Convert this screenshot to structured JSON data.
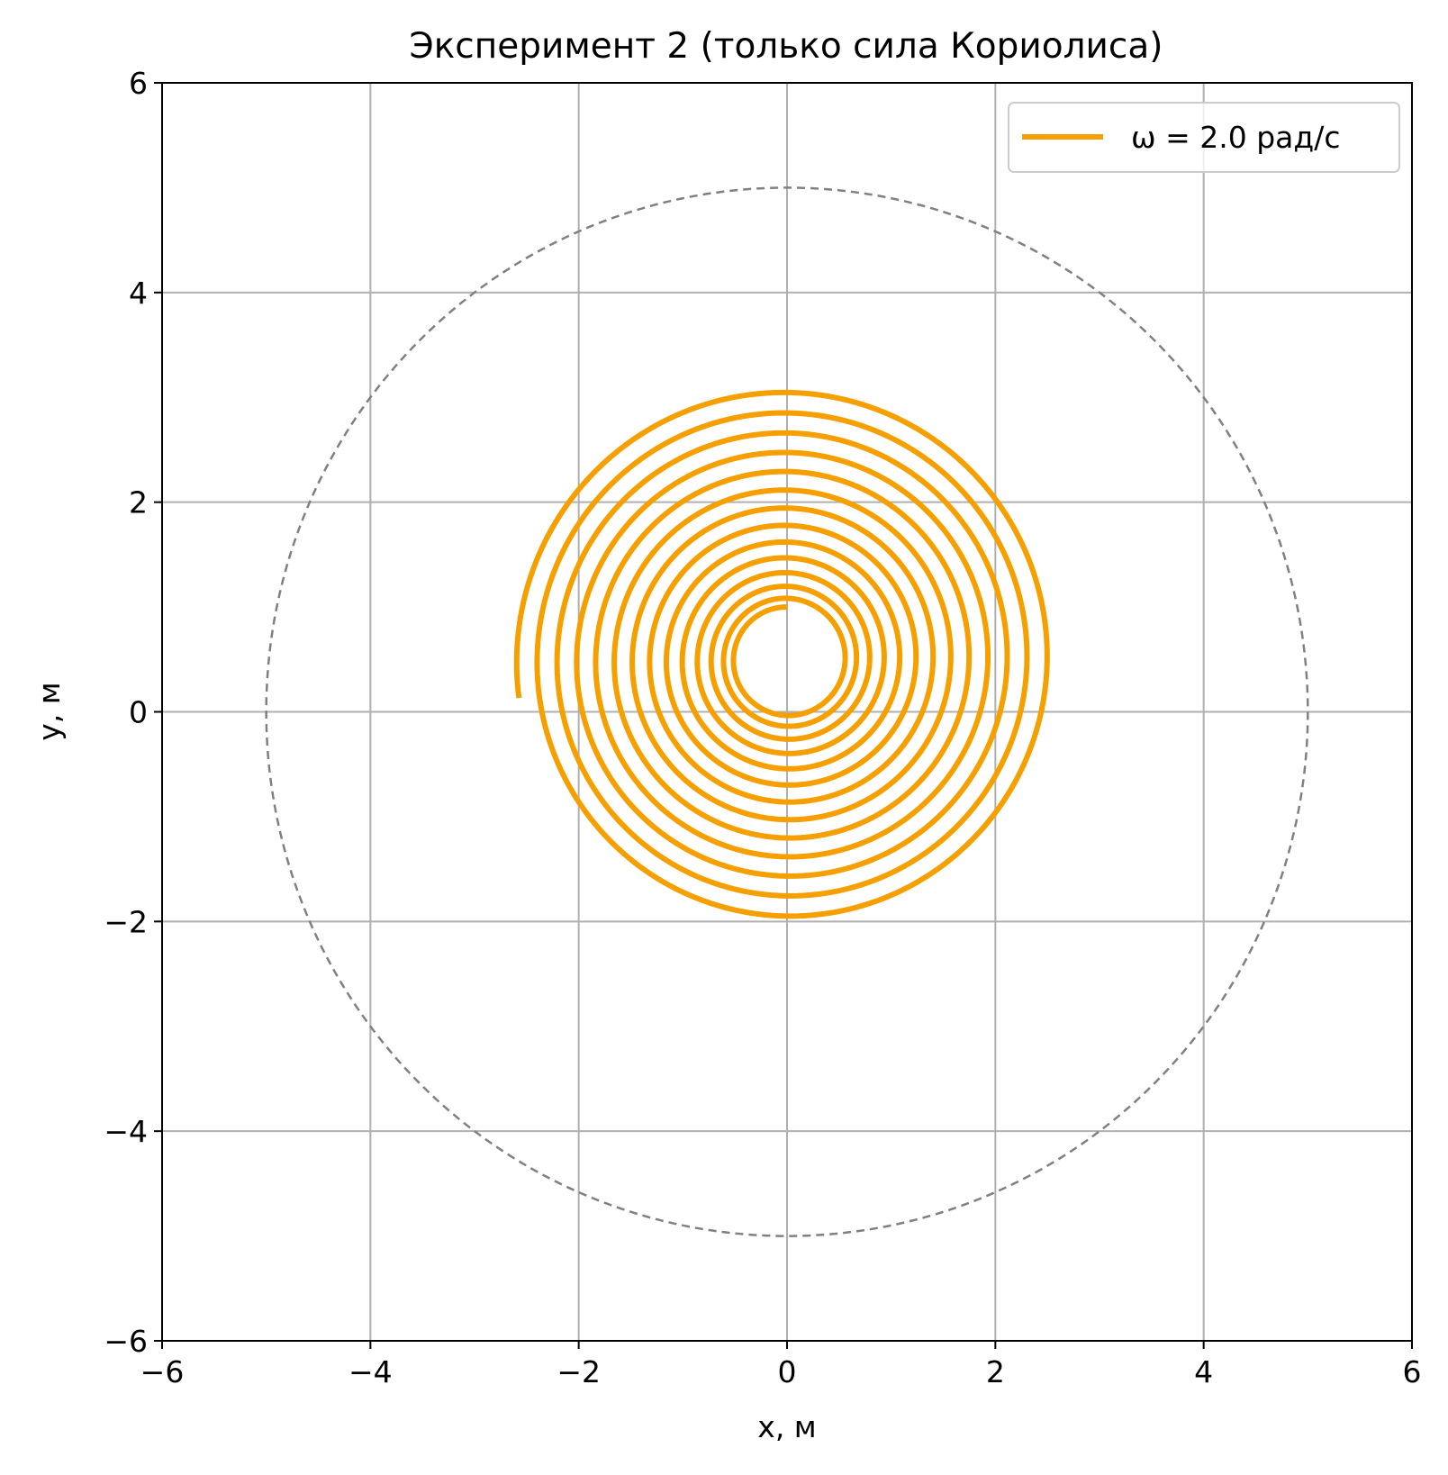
{
  "chart_data": {
    "type": "line",
    "title": "Эксперимент 2 (только сила Кориолиса)",
    "xlabel": "x, м",
    "ylabel": "y, м",
    "xlim": [
      -6,
      6
    ],
    "ylim": [
      -6,
      6
    ],
    "xticks": [
      -6,
      -4,
      -2,
      0,
      2,
      4,
      6
    ],
    "yticks": [
      -6,
      -4,
      -2,
      0,
      2,
      4,
      6
    ],
    "xtick_labels": [
      "−6",
      "−4",
      "−2",
      "0",
      "2",
      "4",
      "6"
    ],
    "ytick_labels": [
      "−6",
      "−4",
      "−2",
      "0",
      "2",
      "4",
      "6"
    ],
    "grid": true,
    "legend": {
      "placement": "top-right",
      "entries": [
        "ω = 2.0 рад/с"
      ]
    },
    "series": [
      {
        "name": "ω = 2.0 рад/с",
        "color": "#f5a000",
        "style": "solid",
        "spiral": {
          "center": [
            0,
            0.5
          ],
          "start": [
            0,
            1.0
          ],
          "end": [
            -2.45,
            0.15
          ],
          "start_radius": 0.5,
          "end_radius": 2.6,
          "turns": 13.7
        }
      },
      {
        "name": "",
        "color": "#808080",
        "style": "dashed",
        "circle": {
          "center": [
            0,
            0
          ],
          "radius": 5
        }
      }
    ]
  }
}
